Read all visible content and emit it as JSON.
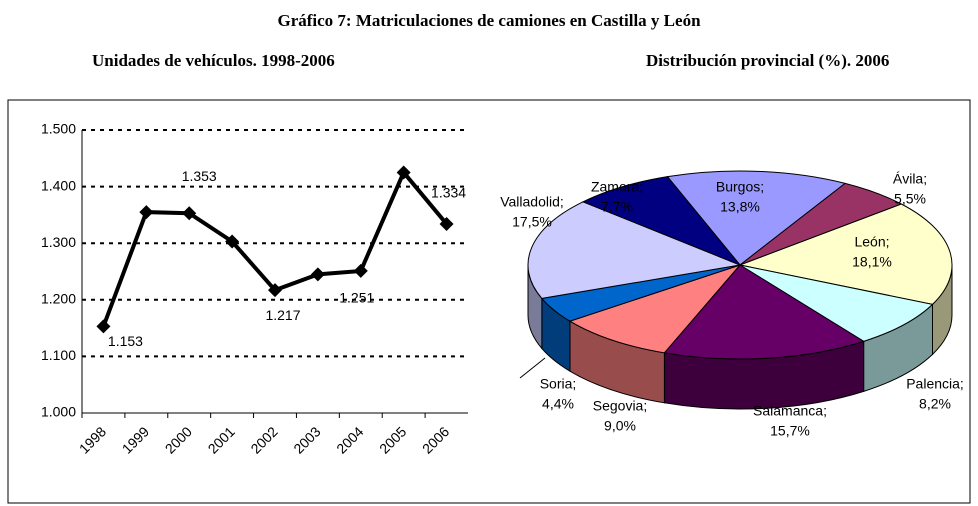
{
  "title": "Gráfico 7: Matriculaciones de camiones en Castilla y León",
  "chart_data": [
    {
      "type": "line",
      "subtitle": "Unidades de vehículos. 1998-2006",
      "categories": [
        "1998",
        "1999",
        "2000",
        "2001",
        "2002",
        "2003",
        "2004",
        "2005",
        "2006"
      ],
      "values": [
        1153,
        1355,
        1353,
        1303,
        1217,
        1245,
        1251,
        1425,
        1334
      ],
      "value_labels": [
        "1.153",
        null,
        "1.353",
        null,
        "1.217",
        null,
        "1.251",
        null,
        "1.334"
      ],
      "color": "#000000",
      "ylim": [
        1000,
        1500
      ],
      "yticks": [
        {
          "value": 1000,
          "label": "1.000"
        },
        {
          "value": 1100,
          "label": "1.100"
        },
        {
          "value": 1200,
          "label": "1.200"
        },
        {
          "value": 1300,
          "label": "1.300"
        },
        {
          "value": 1400,
          "label": "1.400"
        },
        {
          "value": 1500,
          "label": "1.500"
        }
      ],
      "grid": true
    },
    {
      "type": "pie",
      "subtitle": "Distribución provincial (%). 2006",
      "categories": [
        "Burgos;",
        "Ávila;",
        "León;",
        "Palencia;",
        "Salamanca;",
        "Segovia;",
        "Soria;",
        "Valladolid;",
        "Zamora;"
      ],
      "values": [
        13.8,
        5.5,
        18.1,
        8.2,
        15.7,
        9.0,
        4.4,
        17.5,
        7.7
      ],
      "value_labels": [
        "13,8%",
        "5,5%",
        "18,1%",
        "8,2%",
        "15,7%",
        "9,0%",
        "4,4%",
        "17,5%",
        "7,7%"
      ],
      "colors": [
        "#9999ff",
        "#993366",
        "#ffffcc",
        "#ccffff",
        "#660066",
        "#ff8080",
        "#0066cc",
        "#ccccff",
        "#000080"
      ]
    }
  ]
}
